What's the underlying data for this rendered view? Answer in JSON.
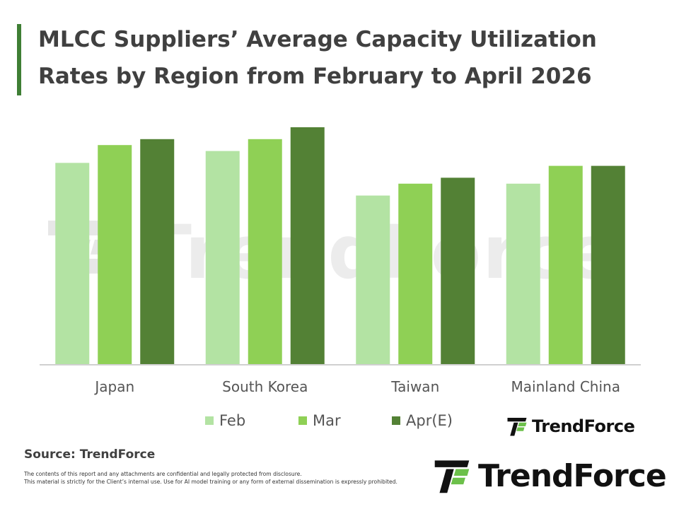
{
  "header": {
    "title_line1": "MLCC Suppliers’ Average Capacity Utilization",
    "title_line2": "Rates by Region from February to April 2026"
  },
  "chart_data": {
    "type": "bar",
    "categories": [
      "Japan",
      "South Korea",
      "Taiwan",
      "Mainland China"
    ],
    "series": [
      {
        "name": "Feb",
        "color": "#b3e3a3",
        "values": [
          68,
          72,
          57,
          61
        ]
      },
      {
        "name": "Mar",
        "color": "#8fd055",
        "values": [
          74,
          76,
          61,
          67
        ]
      },
      {
        "name": "Apr(E)",
        "color": "#538135",
        "values": [
          76,
          80,
          63,
          67
        ]
      }
    ],
    "ylim": [
      0,
      100
    ],
    "grid": false,
    "legend": "bottom"
  },
  "watermark_text": "TrendForce",
  "logo_small": "TrendForce",
  "logo_big": "TrendForce",
  "source": "Source: TrendForce",
  "disclaimer": {
    "line1": "The contents of this report and any attachments are confidential and legally protected from disclosure.",
    "line2": "This material is strictly for the Client’s internal use. Use for AI model training or any form of external dissemination is expressly prohibited."
  }
}
